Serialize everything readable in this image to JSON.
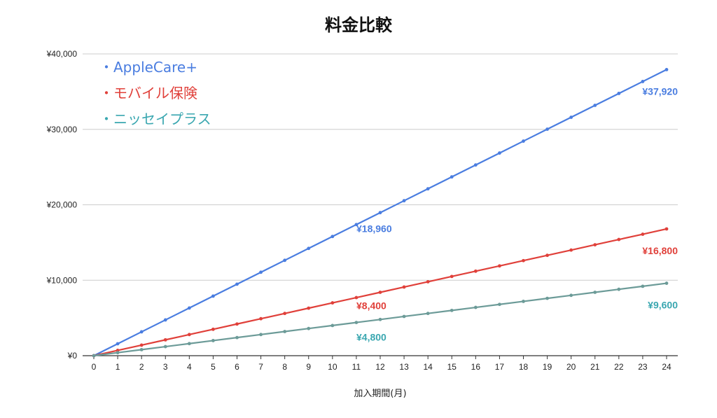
{
  "chart_data": {
    "type": "line",
    "title": "料金比較",
    "xlabel": "加入期間(月)",
    "ylabel": "",
    "x": [
      0,
      1,
      2,
      3,
      4,
      5,
      6,
      7,
      8,
      9,
      10,
      11,
      12,
      13,
      14,
      15,
      16,
      17,
      18,
      19,
      20,
      21,
      22,
      23,
      24
    ],
    "xlim": [
      0,
      24
    ],
    "ylim": [
      0,
      40000
    ],
    "yticks": [
      0,
      10000,
      20000,
      30000,
      40000
    ],
    "ytick_labels": [
      "¥0",
      "¥10,000",
      "¥20,000",
      "¥30,000",
      "¥40,000"
    ],
    "grid": true,
    "legend_placement": "top-left",
    "series": [
      {
        "name": "・AppleCare+",
        "color": "#4a7de0",
        "per_month": 1580,
        "values": [
          0,
          1580,
          3160,
          4740,
          6320,
          7900,
          9480,
          11060,
          12640,
          14220,
          15800,
          17380,
          18960,
          20540,
          22120,
          23700,
          25280,
          26860,
          28440,
          30020,
          31600,
          33180,
          34760,
          36340,
          37920
        ],
        "annotations": [
          {
            "x": 12,
            "y": 18960,
            "label": "¥18,960"
          },
          {
            "x": 24,
            "y": 37920,
            "label": "¥37,920"
          }
        ]
      },
      {
        "name": "・モバイル保険",
        "color": "#e0403a",
        "per_month": 700,
        "values": [
          0,
          700,
          1400,
          2100,
          2800,
          3500,
          4200,
          4900,
          5600,
          6300,
          7000,
          7700,
          8400,
          9100,
          9800,
          10500,
          11200,
          11900,
          12600,
          13300,
          14000,
          14700,
          15400,
          16100,
          16800
        ],
        "annotations": [
          {
            "x": 12,
            "y": 8400,
            "label": "¥8,400"
          },
          {
            "x": 24,
            "y": 16800,
            "label": "¥16,800"
          }
        ]
      },
      {
        "name": "・ニッセイプラス",
        "color": "#3aa7b0",
        "line_color": "#6c9b98",
        "per_month": 400,
        "values": [
          0,
          400,
          800,
          1200,
          1600,
          2000,
          2400,
          2800,
          3200,
          3600,
          4000,
          4400,
          4800,
          5200,
          5600,
          6000,
          6400,
          6800,
          7200,
          7600,
          8000,
          8400,
          8800,
          9200,
          9600
        ],
        "annotations": [
          {
            "x": 12,
            "y": 4800,
            "label": "¥4,800"
          },
          {
            "x": 24,
            "y": 9600,
            "label": "¥9,600"
          }
        ]
      }
    ]
  }
}
